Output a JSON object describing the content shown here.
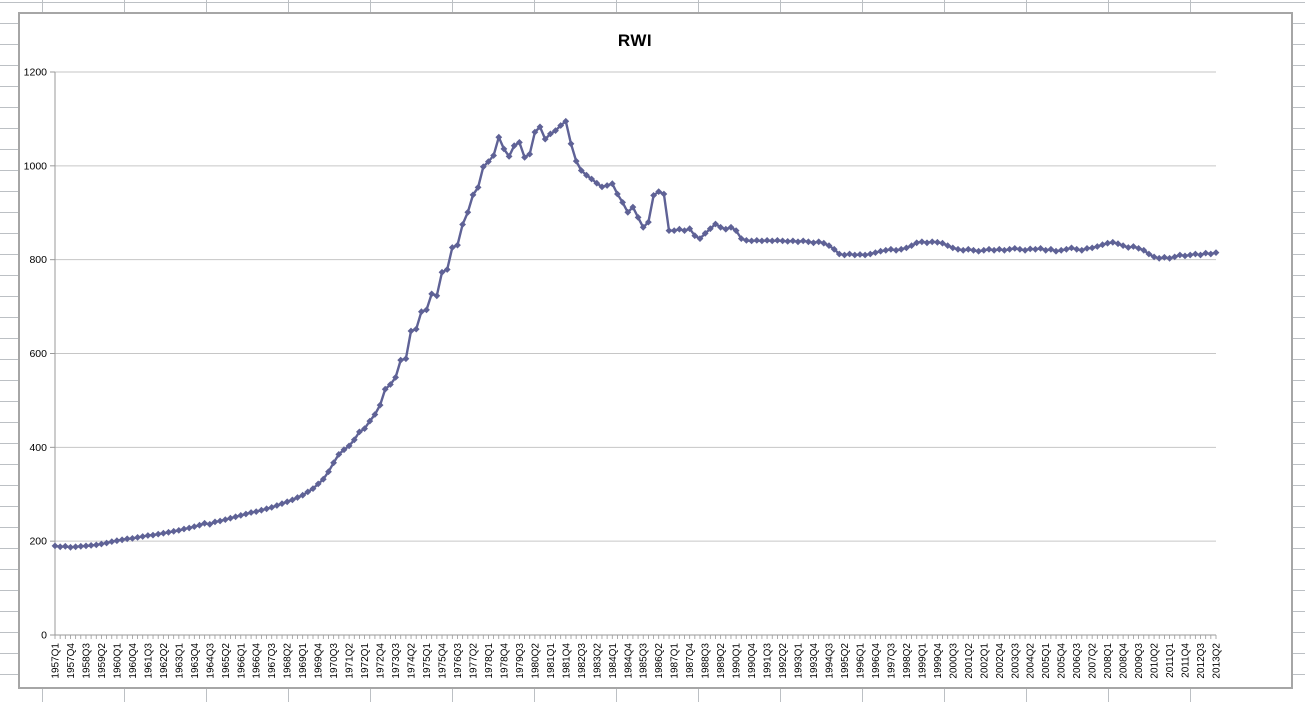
{
  "chart_data": {
    "type": "line",
    "title": "RWI",
    "xlabel": "",
    "ylabel": "",
    "ylim": [
      0,
      1200
    ],
    "y_ticks": [
      0,
      200,
      400,
      600,
      800,
      1000,
      1200
    ],
    "grid": "horizontal",
    "legend": "none",
    "marker": "diamond",
    "x_frequency": "quarterly",
    "x_start": "1957Q1",
    "x_end": "2013Q2",
    "x_label_every": 3,
    "x_tick_labels": [
      "1957Q1",
      "1957Q4",
      "1958Q3",
      "1959Q2",
      "1960Q1",
      "1960Q4",
      "1961Q3",
      "1962Q2",
      "1963Q1",
      "1963Q4",
      "1964Q3",
      "1965Q2",
      "1966Q1",
      "1966Q4",
      "1967Q3",
      "1968Q2",
      "1969Q1",
      "1969Q4",
      "1970Q3",
      "1971Q2",
      "1972Q1",
      "1972Q4",
      "1973Q3",
      "1974Q2",
      "1975Q1",
      "1975Q4",
      "1976Q3",
      "1977Q2",
      "1978Q1",
      "1978Q4",
      "1979Q3",
      "1980Q2",
      "1981Q1",
      "1981Q4",
      "1982Q3",
      "1983Q2",
      "1984Q1",
      "1984Q4",
      "1985Q3",
      "1986Q2",
      "1987Q1",
      "1987Q4",
      "1988Q3",
      "1989Q2",
      "1990Q1",
      "1990Q4",
      "1991Q3",
      "1992Q2",
      "1993Q1",
      "1993Q4",
      "1994Q3",
      "1995Q2",
      "1996Q1",
      "1996Q4",
      "1997Q3",
      "1998Q2",
      "1999Q1",
      "1999Q4",
      "2000Q3",
      "2001Q2",
      "2002Q1",
      "2002Q4",
      "2003Q3",
      "2004Q2",
      "2005Q1",
      "2005Q4",
      "2006Q3",
      "2007Q2",
      "2008Q1",
      "2008Q4",
      "2009Q3",
      "2010Q2",
      "2011Q1",
      "2011Q4",
      "2012Q3",
      "2013Q2"
    ],
    "series": [
      {
        "name": "RWI",
        "values": [
          190,
          188,
          189,
          187,
          188,
          189,
          190,
          191,
          192,
          194,
          196,
          199,
          201,
          203,
          205,
          206,
          208,
          210,
          212,
          213,
          215,
          217,
          219,
          221,
          223,
          226,
          228,
          231,
          234,
          238,
          236,
          241,
          243,
          246,
          249,
          252,
          255,
          258,
          261,
          263,
          266,
          269,
          272,
          276,
          280,
          284,
          288,
          293,
          298,
          305,
          312,
          322,
          332,
          348,
          367,
          385,
          395,
          403,
          416,
          433,
          440,
          456,
          470,
          490,
          524,
          534,
          549,
          586,
          589,
          648,
          652,
          689,
          693,
          727,
          723,
          773,
          779,
          826,
          831,
          875,
          901,
          938,
          954,
          998,
          1009,
          1022,
          1061,
          1036,
          1020,
          1043,
          1050,
          1018,
          1025,
          1072,
          1083,
          1057,
          1068,
          1075,
          1086,
          1095,
          1047,
          1010,
          990,
          980,
          972,
          963,
          955,
          958,
          962,
          940,
          922,
          901,
          912,
          890,
          869,
          880,
          937,
          945,
          940,
          862,
          862,
          865,
          862,
          866,
          851,
          845,
          856,
          866,
          876,
          869,
          865,
          869,
          862,
          845,
          841,
          840,
          841,
          840,
          841,
          840,
          841,
          840,
          839,
          840,
          838,
          840,
          838,
          836,
          838,
          835,
          830,
          822,
          812,
          810,
          812,
          810,
          811,
          810,
          812,
          815,
          818,
          820,
          822,
          820,
          822,
          825,
          830,
          836,
          838,
          836,
          838,
          837,
          835,
          830,
          825,
          822,
          820,
          822,
          820,
          818,
          820,
          822,
          820,
          822,
          820,
          822,
          824,
          822,
          820,
          823,
          822,
          824,
          820,
          822,
          818,
          820,
          822,
          825,
          822,
          820,
          824,
          825,
          828,
          832,
          835,
          837,
          834,
          830,
          826,
          828,
          824,
          820,
          812,
          806,
          803,
          805,
          803,
          806,
          810,
          808,
          810,
          812,
          810,
          814,
          812,
          815
        ]
      }
    ]
  },
  "colors": {
    "series_line": "#5f6296",
    "series_marker": "#5f6296",
    "plot_gridline": "#c6c6c6",
    "axis_line": "#9a9a9a",
    "chart_border": "#a6a6a6",
    "sheet_gridline": "#bcc0c4",
    "label_text": "#000000"
  }
}
